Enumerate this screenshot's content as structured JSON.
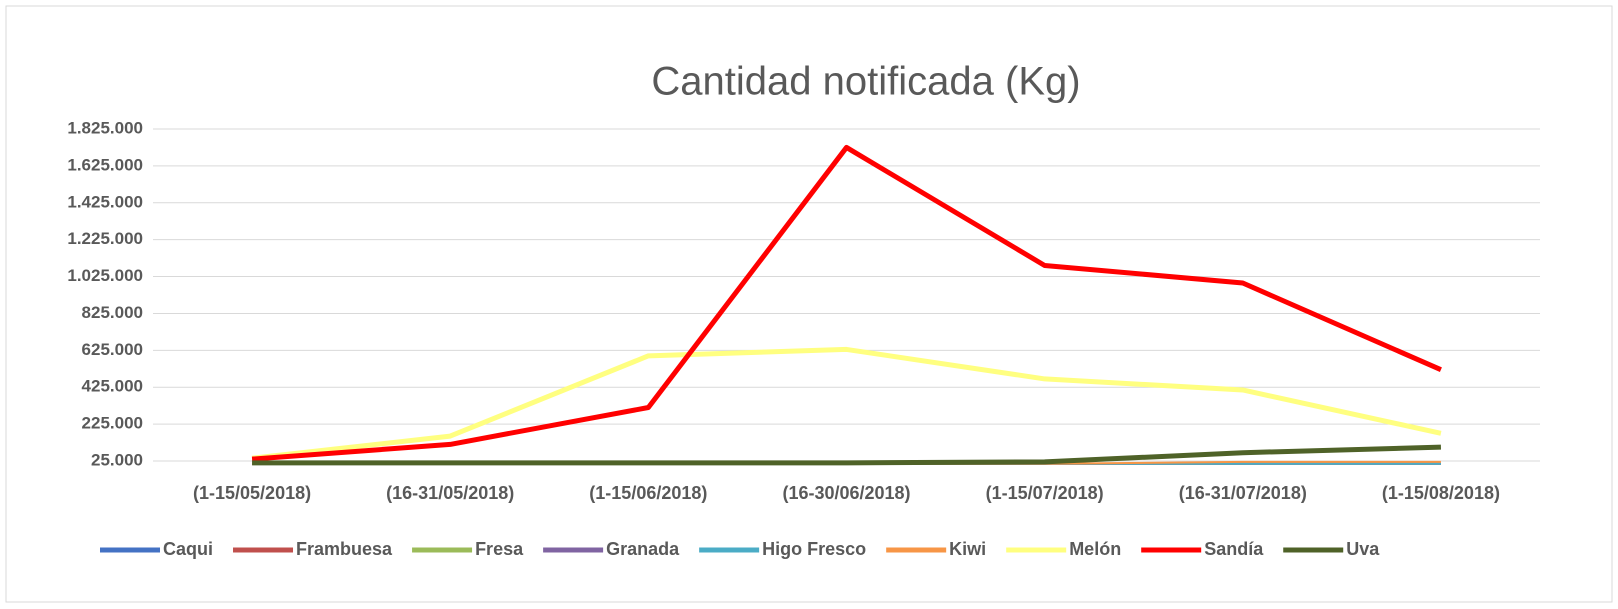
{
  "chart_data": {
    "type": "line",
    "title": "Cantidad notificada  (Kg)",
    "categories": [
      "(1-15/05/2018)",
      "(16-31/05/2018)",
      "(1-15/06/2018)",
      "(16-30/06/2018)",
      "(1-15/07/2018)",
      "(16-31/07/2018)",
      "(1-15/08/2018)"
    ],
    "series": [
      {
        "name": "Caqui",
        "color": "#4472c4",
        "values": [
          10000,
          10000,
          10000,
          10000,
          10000,
          10000,
          10000
        ]
      },
      {
        "name": "Frambuesa",
        "color": "#c0504d",
        "values": [
          10000,
          10000,
          10000,
          10000,
          10000,
          10000,
          10000
        ]
      },
      {
        "name": "Fresa",
        "color": "#9bbb59",
        "values": [
          10000,
          10000,
          10000,
          10000,
          10000,
          10000,
          10000
        ]
      },
      {
        "name": "Granada",
        "color": "#8064a2",
        "values": [
          10000,
          10000,
          10000,
          10000,
          10000,
          10000,
          10000
        ]
      },
      {
        "name": "Higo Fresco",
        "color": "#4bacc6",
        "values": [
          10000,
          10000,
          10000,
          10000,
          10000,
          10000,
          10000
        ]
      },
      {
        "name": "Kiwi",
        "color": "#f79646",
        "values": [
          10000,
          10000,
          10000,
          10000,
          10000,
          20000,
          20000
        ]
      },
      {
        "name": "Melón",
        "color": "#ffff80",
        "values": [
          40000,
          160000,
          595000,
          630000,
          470000,
          410000,
          175000
        ]
      },
      {
        "name": "Sandía",
        "color": "#ff0000",
        "values": [
          35000,
          115000,
          315000,
          1725000,
          1085000,
          990000,
          520000
        ]
      },
      {
        "name": "Uva",
        "color": "#4f6228",
        "values": [
          15000,
          15000,
          15000,
          15000,
          20000,
          70000,
          100000
        ]
      }
    ],
    "ylim": [
      25000,
      1825000
    ],
    "yticks": [
      {
        "value": 25000,
        "label": "25.000"
      },
      {
        "value": 225000,
        "label": "225.000"
      },
      {
        "value": 425000,
        "label": "425.000"
      },
      {
        "value": 625000,
        "label": "625.000"
      },
      {
        "value": 825000,
        "label": "825.000"
      },
      {
        "value": 1025000,
        "label": "1.025.000"
      },
      {
        "value": 1225000,
        "label": "1.225.000"
      },
      {
        "value": 1425000,
        "label": "1.425.000"
      },
      {
        "value": 1625000,
        "label": "1.625.000"
      },
      {
        "value": 1825000,
        "label": "1.825.000"
      }
    ],
    "grid": true,
    "legend": "bottom"
  }
}
